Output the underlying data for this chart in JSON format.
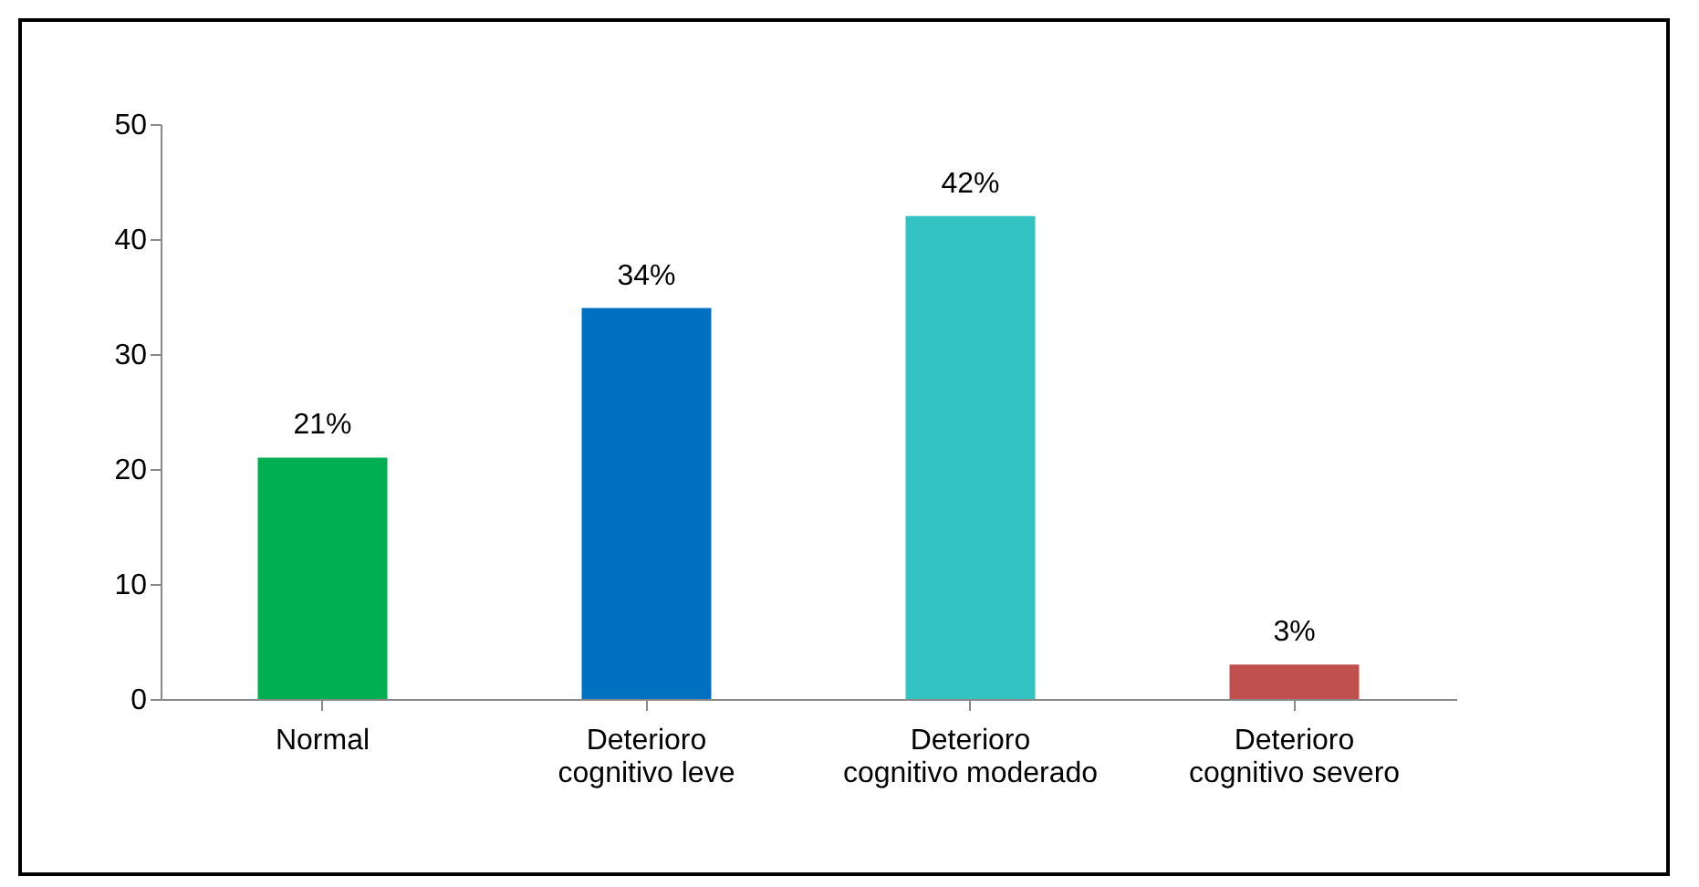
{
  "chart_data": {
    "type": "bar",
    "categories": [
      "Normal",
      "Deterioro cognitivo leve",
      "Deterioro cognitivo moderado",
      "Deterioro cognitivo severo"
    ],
    "values": [
      21,
      34,
      42,
      3
    ],
    "colors": [
      "#00b050",
      "#0070c0",
      "#33c3c3",
      "#c0504d"
    ],
    "value_labels": [
      "21%",
      "34%",
      "42%",
      "3%"
    ],
    "ylim": [
      0,
      50
    ],
    "yticks": [
      0,
      10,
      20,
      30,
      40,
      50
    ],
    "grid": false,
    "legend": false
  }
}
